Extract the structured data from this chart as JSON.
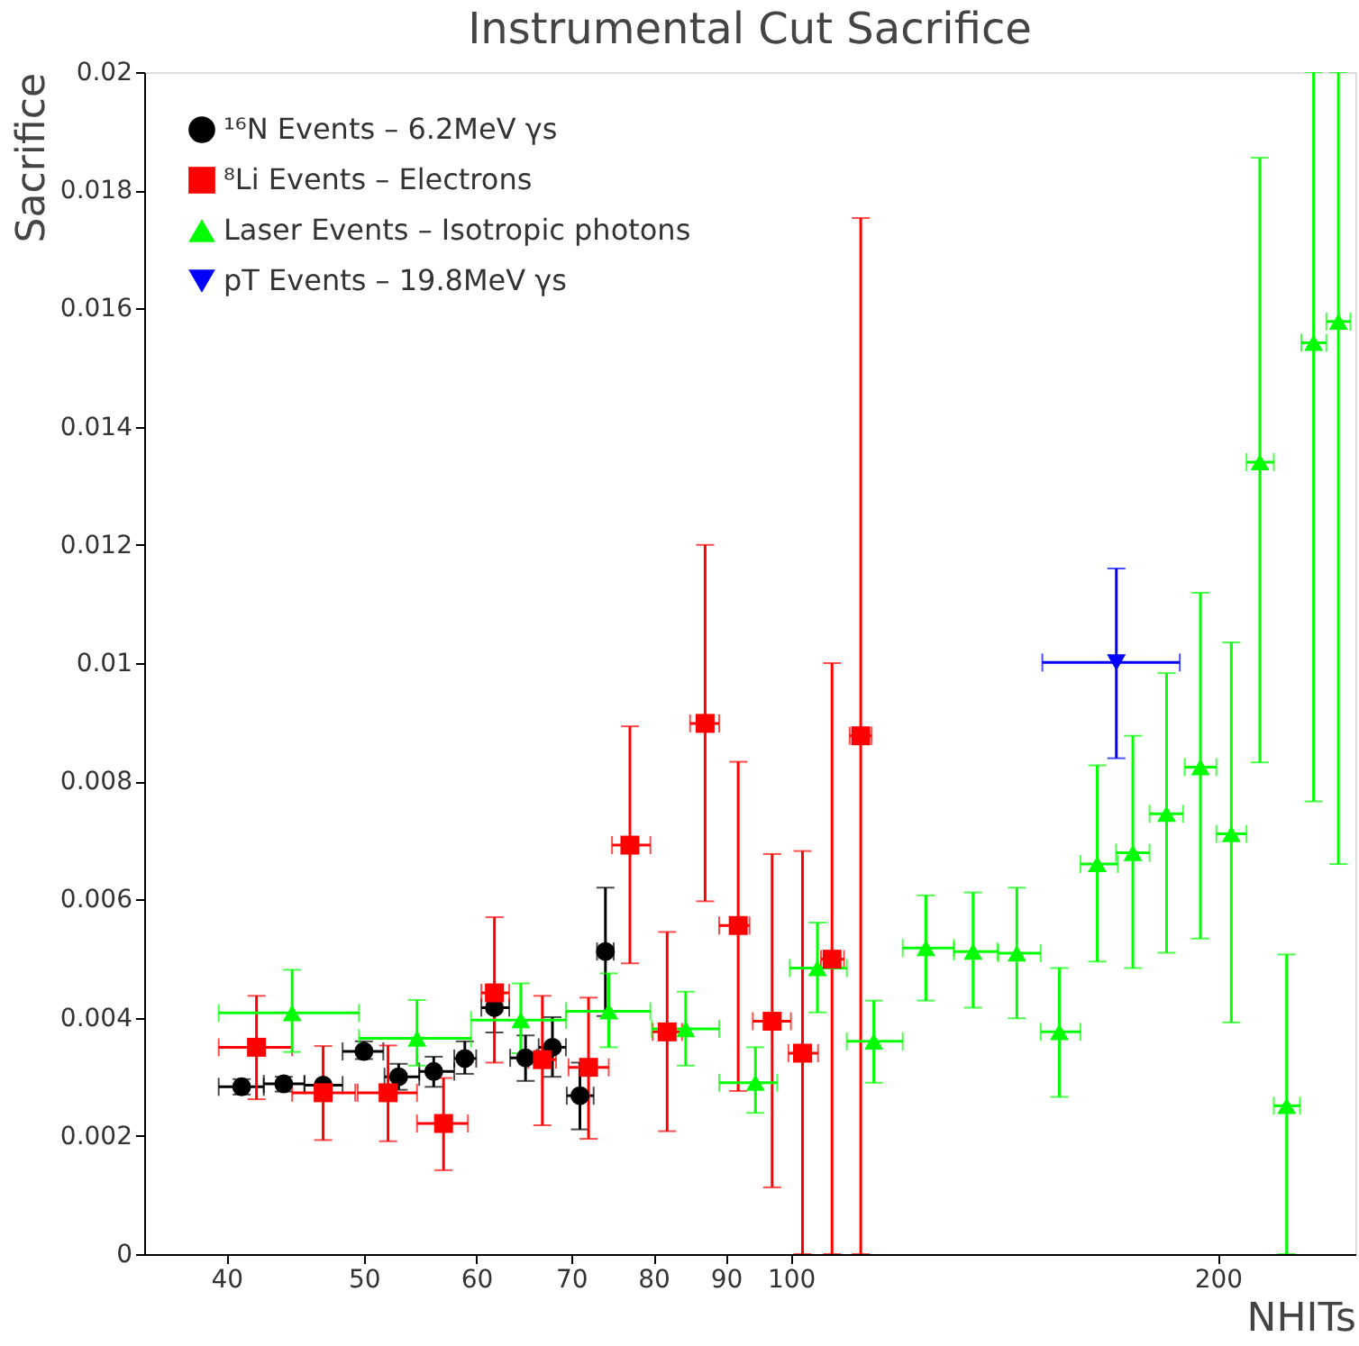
{
  "chart_data": {
    "type": "scatter",
    "title": "Instrumental Cut Sacrifice",
    "xlabel": "NHITs",
    "ylabel": "Sacrifice",
    "log": "x",
    "grid": false,
    "legend": "top left",
    "xlim": [
      35,
      250
    ],
    "xticks": [
      40,
      50,
      60,
      70,
      80,
      90,
      100,
      200
    ],
    "ylim": [
      0,
      0.02
    ],
    "yticks": [
      0,
      0.002,
      0.004,
      0.006,
      0.008,
      0.01,
      0.012,
      0.014,
      0.016,
      0.018,
      0.02
    ],
    "series": [
      {
        "name": "¹⁶N Events – 6.2MeV γs",
        "color": "#000000",
        "marker": "circle",
        "x": [
          41.0,
          43.9,
          46.8,
          50.0,
          52.9,
          56.0,
          58.9,
          61.8,
          65.0,
          67.9,
          71.0,
          74.0
        ],
        "values": [
          0.00283,
          0.00288,
          0.00286,
          0.00343,
          0.003,
          0.00309,
          0.00331,
          0.00417,
          0.00332,
          0.0035,
          0.00268,
          0.00512
        ],
        "errors": [
          [
            0.0027,
            0.00296
          ],
          [
            0.00275,
            0.003
          ],
          null,
          [
            0.0033,
            0.0036
          ],
          [
            0.00278,
            0.00322
          ],
          [
            0.00283,
            0.00334
          ],
          [
            0.00305,
            0.0036
          ],
          [
            0.00375,
            0.00452
          ],
          [
            0.00293,
            0.0037
          ],
          [
            0.003,
            0.00401
          ],
          [
            0.00211,
            0.00324
          ],
          [
            0.00403,
            0.0062
          ]
        ],
        "xerrors": [
          [
            39.5,
            42.5
          ],
          [
            42.5,
            45.4
          ],
          [
            45.4,
            48.3
          ],
          [
            48.3,
            51.6
          ],
          [
            51.7,
            54.7
          ],
          [
            54.7,
            57.9
          ],
          [
            57.9,
            60.0
          ],
          [
            60.5,
            63.3
          ],
          [
            63.4,
            66.2
          ],
          [
            66.4,
            69.4
          ],
          [
            69.5,
            72.6
          ],
          [
            73.0,
            75.0
          ]
        ]
      },
      {
        "name": "⁸Li Events – Electrons",
        "color": "#ff0000",
        "marker": "square",
        "x": [
          42.0,
          46.8,
          52.0,
          56.9,
          61.8,
          66.8,
          72.0,
          77.0,
          81.8,
          87.0,
          91.8,
          97.0,
          101.9,
          106.9,
          112.0
        ],
        "values": [
          0.0035,
          0.00273,
          0.00273,
          0.00221,
          0.00442,
          0.00329,
          0.00316,
          0.00692,
          0.00376,
          0.00898,
          0.00556,
          0.00394,
          0.0034,
          0.00499,
          0.00877
        ],
        "errors": [
          [
            0.00262,
            0.00437
          ],
          [
            0.00193,
            0.00352
          ],
          [
            0.00191,
            0.00353
          ],
          [
            0.00142,
            0.00298
          ],
          [
            0.00324,
            0.0057
          ],
          [
            0.00218,
            0.00437
          ],
          [
            0.00195,
            0.00434
          ],
          [
            0.00492,
            0.00893
          ],
          [
            0.00208,
            0.00545
          ],
          [
            0.00597,
            0.012
          ],
          [
            0.00276,
            0.00833
          ],
          [
            0.00113,
            0.00677
          ],
          [
            0,
            0.00682
          ],
          [
            0,
            0.01
          ],
          [
            0,
            0.01753
          ]
        ],
        "xerrors": [
          [
            39.5,
            44.5
          ],
          [
            44.5,
            49.3
          ],
          [
            49.5,
            54.5
          ],
          [
            54.5,
            59.2
          ],
          [
            60.5,
            63.3
          ],
          [
            65.3,
            68.3
          ],
          [
            69.7,
            74.4
          ],
          [
            74.8,
            79.6
          ],
          [
            79.9,
            83.8
          ],
          [
            84.9,
            89.0
          ],
          [
            89.0,
            93.5
          ],
          [
            94.0,
            100.0
          ],
          [
            99.6,
            104.5
          ],
          [
            105.0,
            109.0
          ],
          [
            110.0,
            114.0
          ]
        ]
      },
      {
        "name": "Laser Events – Isotropic photons",
        "color": "#00ff00",
        "marker": "triangle",
        "x": [
          44.5,
          54.5,
          64.5,
          74.4,
          84.3,
          94.4,
          104.4,
          114.4,
          124.5,
          134.4,
          144.3,
          154.6,
          164.4,
          174.2,
          184.0,
          194.4,
          204.4,
          214.1,
          223.6,
          233.6,
          243.2
        ],
        "values": [
          0.00408,
          0.00365,
          0.00396,
          0.00411,
          0.00381,
          0.0029,
          0.00484,
          0.0036,
          0.00518,
          0.00512,
          0.00509,
          0.00376,
          0.0066,
          0.00679,
          0.00745,
          0.00824,
          0.00711,
          0.0134,
          0.00251,
          0.01542,
          0.01578
        ],
        "errors": [
          [
            0.00342,
            0.00481
          ],
          [
            0.00319,
            0.0043
          ],
          [
            0.0034,
            0.00458
          ],
          [
            0.0035,
            0.00475
          ],
          [
            0.00319,
            0.00444
          ],
          [
            0.00239,
            0.0035
          ],
          [
            0.00409,
            0.00561
          ],
          [
            0.0029,
            0.00429
          ],
          [
            0.00429,
            0.00607
          ],
          [
            0.00417,
            0.00612
          ],
          [
            0.00399,
            0.0062
          ],
          [
            0.00266,
            0.00484
          ],
          [
            0.00495,
            0.00827
          ],
          [
            0.00484,
            0.00877
          ],
          [
            0.0051,
            0.00983
          ],
          [
            0.00534,
            0.01119
          ],
          [
            0.00392,
            0.01035
          ],
          [
            0.00832,
            0.01855
          ],
          [
            0,
            0.00507
          ],
          [
            0.00766,
            0.02
          ],
          [
            0.0066,
            0.02
          ]
        ],
        "xerrors": [
          [
            39.5,
            49.6
          ],
          [
            49.6,
            59.5
          ],
          [
            59.5,
            69.4
          ],
          [
            69.4,
            79.6
          ],
          [
            79.8,
            89.0
          ],
          [
            89.0,
            97.8
          ],
          [
            99.8,
            109.5
          ],
          [
            109.5,
            119.9
          ],
          [
            119.9,
            130.3
          ],
          [
            130.3,
            139.9
          ],
          [
            140.0,
            150.0
          ],
          [
            150.0,
            160.0
          ],
          [
            160.0,
            170.0
          ],
          [
            169.5,
            179.0
          ],
          [
            179.0,
            189.0
          ],
          [
            189.5,
            199.5
          ],
          [
            199.5,
            209.5
          ],
          [
            209.5,
            219.0
          ],
          [
            219.0,
            228.5
          ],
          [
            229.0,
            238.5
          ],
          [
            238.5,
            248.0
          ]
        ]
      },
      {
        "name": "pT Events – 19.8MeV γs",
        "color": "#0000ff",
        "marker": "triangle-down",
        "x": [
          169.6
        ],
        "values": [
          0.01001
        ],
        "errors": [
          [
            0.00839,
            0.0116
          ]
        ],
        "xerrors": [
          [
            150.4,
            188.0
          ]
        ]
      }
    ]
  }
}
